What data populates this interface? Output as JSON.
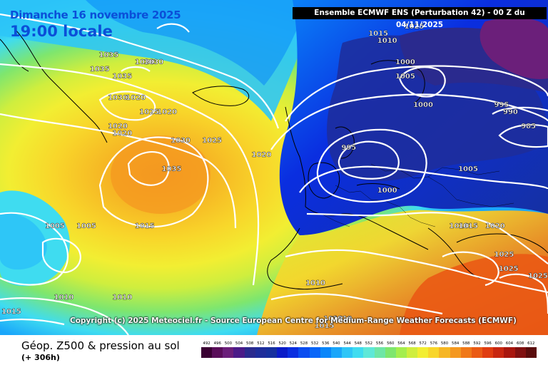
{
  "title": {
    "date": "Dimanche 16 novembre 2025",
    "time": "19:00 locale"
  },
  "header": "Ensemble ECMWF ENS  (Perturbation 42)  -  00 Z du 04/11/2025",
  "copyright": "Copyright (c) 2025 Meteociel.fr - Source European Centre for Medium-Range Weather Forecasts (ECMWF)",
  "product": {
    "name": "Géop. Z500 & pression au sol",
    "lead": "(+ 306h)"
  },
  "scale": {
    "labels": [
      "492",
      "496",
      "500",
      "504",
      "508",
      "512",
      "516",
      "520",
      "524",
      "528",
      "532",
      "536",
      "540",
      "544",
      "548",
      "552",
      "556",
      "560",
      "564",
      "568",
      "572",
      "576",
      "580",
      "584",
      "588",
      "592",
      "596",
      "600",
      "604",
      "608",
      "612"
    ],
    "colors": [
      "#3a0033",
      "#5a0e5a",
      "#6b1f7a",
      "#4b1b88",
      "#2a2a8e",
      "#1e2d9a",
      "#16309e",
      "#0a1cc8",
      "#0a2ee0",
      "#0a4cf0",
      "#0a66f8",
      "#0a86fa",
      "#1aa6fa",
      "#2ec6f7",
      "#3fdcf0",
      "#5ee8d8",
      "#6ee6a6",
      "#7ee66e",
      "#a4ee4e",
      "#cfee3e",
      "#f2ee32",
      "#f8d62a",
      "#f6b624",
      "#f49820",
      "#f07818",
      "#ea5a14",
      "#e03c10",
      "#c82610",
      "#a8160e",
      "#801010",
      "#5a0c0c"
    ]
  },
  "isobars": [
    {
      "label": "1035",
      "x": -60,
      "y": 62
    },
    {
      "label": "1035",
      "x": -58,
      "y": 64
    },
    {
      "label": "1030",
      "x": -50,
      "y": 63
    },
    {
      "label": "1030",
      "x": -48,
      "y": 63
    },
    {
      "label": "1035",
      "x": -55,
      "y": 61
    },
    {
      "label": "1030",
      "x": -56,
      "y": 58
    },
    {
      "label": "1020",
      "x": -52,
      "y": 58
    },
    {
      "label": "1025",
      "x": -49,
      "y": 56
    },
    {
      "label": "1020",
      "x": -45,
      "y": 56
    },
    {
      "label": "1020",
      "x": -56,
      "y": 54
    },
    {
      "label": "1020",
      "x": -55,
      "y": 53
    },
    {
      "label": "1030",
      "x": -42,
      "y": 52
    },
    {
      "label": "1025",
      "x": -35,
      "y": 52
    },
    {
      "label": "1035",
      "x": -44,
      "y": 48
    },
    {
      "label": "1020",
      "x": -24,
      "y": 50
    },
    {
      "label": "1015",
      "x": 2,
      "y": 67
    },
    {
      "label": "1010",
      "x": 4,
      "y": 66
    },
    {
      "label": "1025",
      "x": 10,
      "y": 68
    },
    {
      "label": "1000",
      "x": 8,
      "y": 63
    },
    {
      "label": "1005",
      "x": 8,
      "y": 61
    },
    {
      "label": "1000",
      "x": 12,
      "y": 57
    },
    {
      "label": "995",
      "x": 30,
      "y": 57
    },
    {
      "label": "990",
      "x": 32,
      "y": 56
    },
    {
      "label": "985",
      "x": 36,
      "y": 54
    },
    {
      "label": "995",
      "x": -4,
      "y": 51
    },
    {
      "label": "1005",
      "x": 22,
      "y": 48
    },
    {
      "label": "1000",
      "x": 4,
      "y": 45
    },
    {
      "label": "1005",
      "x": -70,
      "y": 40
    },
    {
      "label": "1005",
      "x": -63,
      "y": 40
    },
    {
      "label": "1015",
      "x": -50,
      "y": 40
    },
    {
      "label": "1010",
      "x": 20,
      "y": 40
    },
    {
      "label": "1015",
      "x": 22,
      "y": 40
    },
    {
      "label": "1020",
      "x": 28,
      "y": 40
    },
    {
      "label": "1010",
      "x": -68,
      "y": 30
    },
    {
      "label": "1010",
      "x": -55,
      "y": 30
    },
    {
      "label": "1015",
      "x": -80,
      "y": 28
    },
    {
      "label": "1010",
      "x": -12,
      "y": 32
    },
    {
      "label": "1025",
      "x": 30,
      "y": 36
    },
    {
      "label": "1025",
      "x": 31,
      "y": 34
    },
    {
      "label": "1025",
      "x": 38,
      "y": 33
    },
    {
      "label": "1010",
      "x": -8,
      "y": 27
    },
    {
      "label": "1010",
      "x": -6,
      "y": 27
    },
    {
      "label": "1015",
      "x": -10,
      "y": 26
    }
  ]
}
